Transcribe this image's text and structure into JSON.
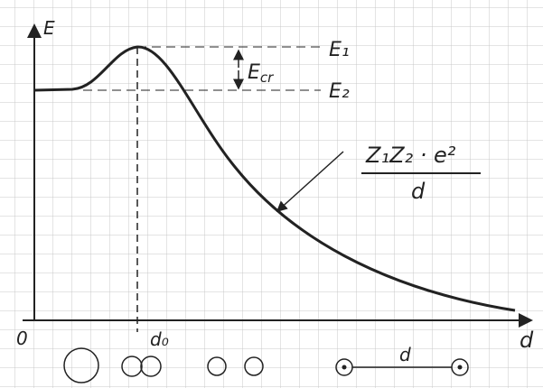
{
  "axes": {
    "y_label": "E",
    "x_label": "d",
    "origin": "0",
    "d0": "d₀"
  },
  "levels": {
    "e1": "E₁",
    "e2": "E₂",
    "ecr": {
      "base": "E",
      "sub": "cr"
    }
  },
  "formula": {
    "numerator": "Z₁Z₂ · e²",
    "denominator": "d"
  },
  "separation_label": "d"
}
